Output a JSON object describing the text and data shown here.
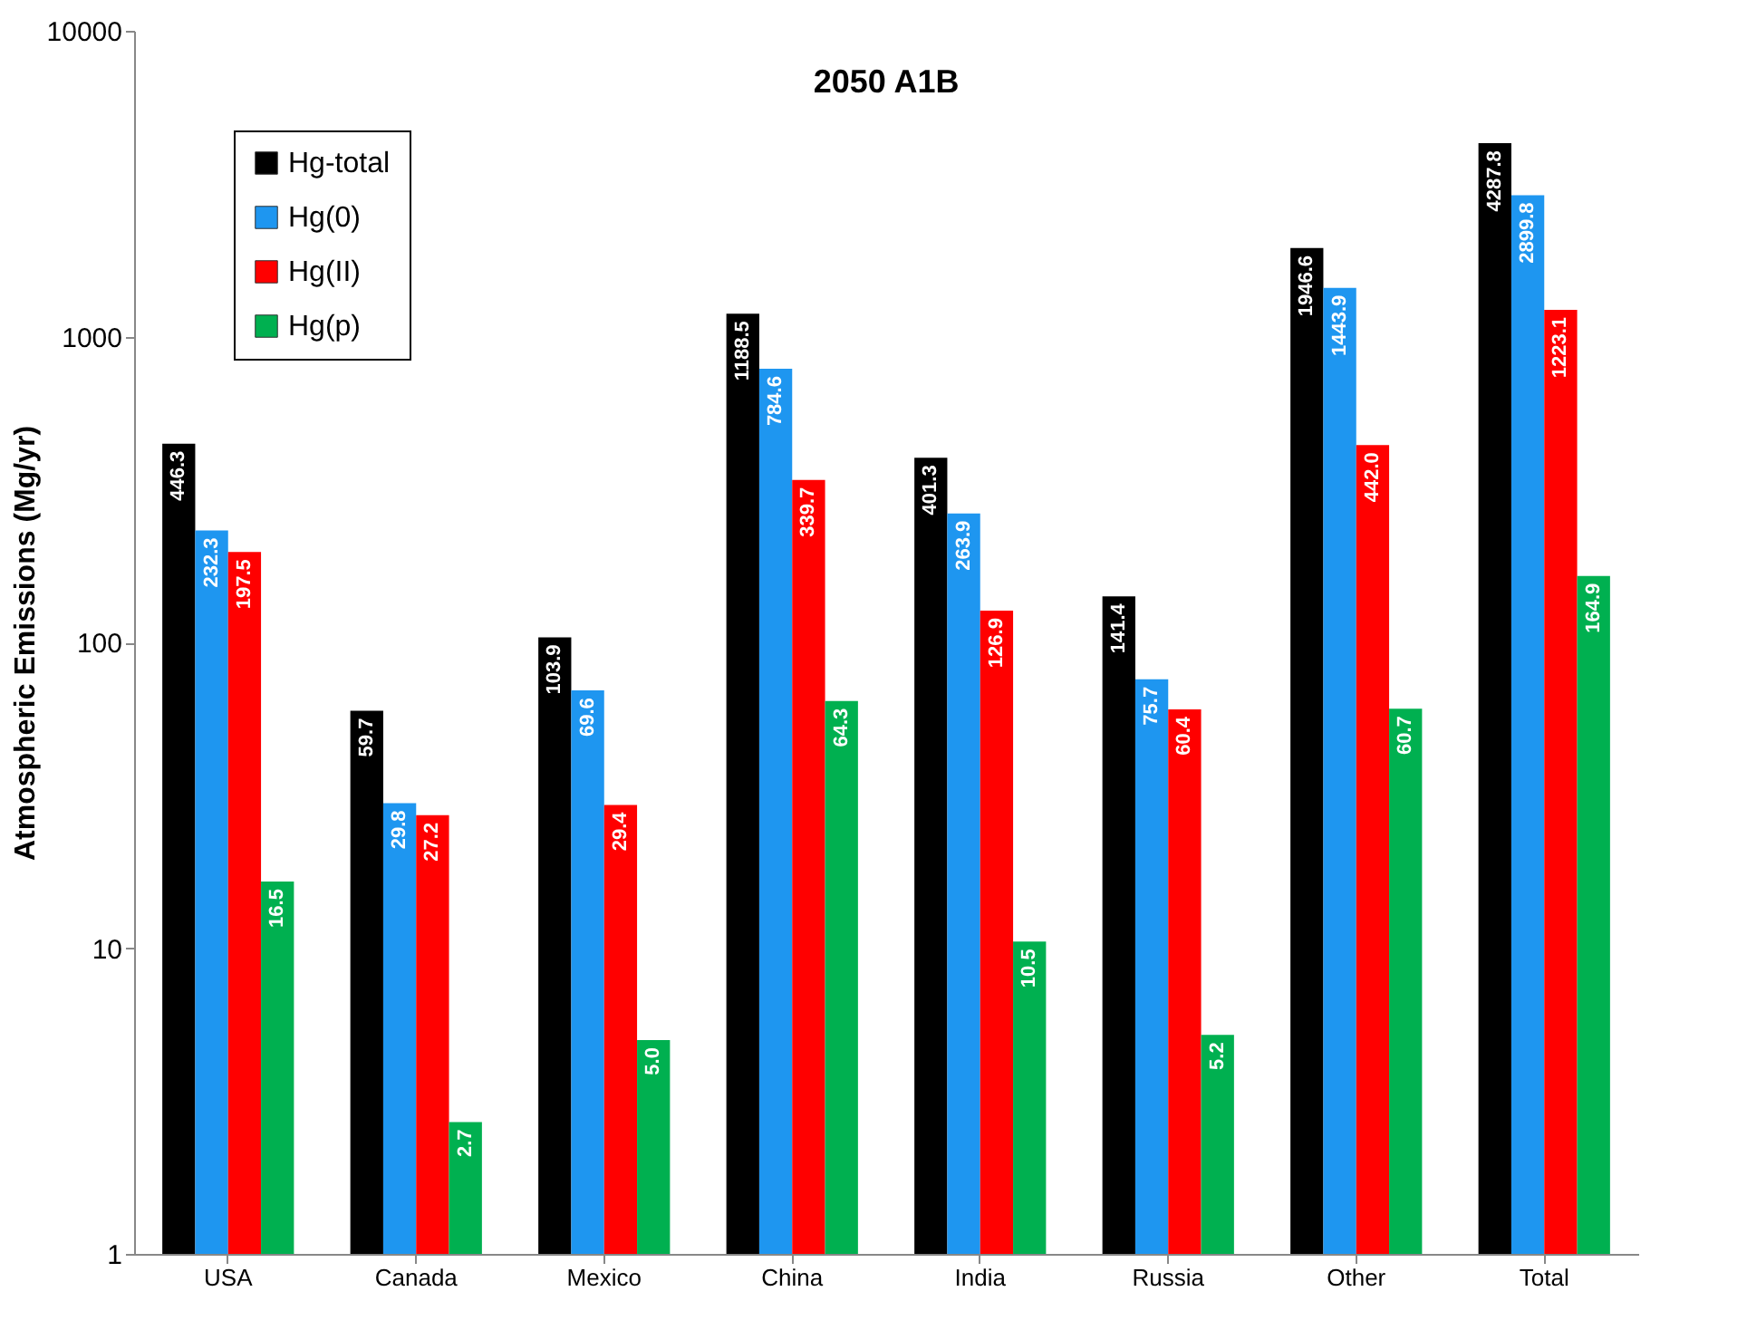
{
  "chart_data": {
    "type": "bar",
    "title": "2050 A1B",
    "ylabel": "Atmospheric Emissions (Mg/yr)",
    "categories": [
      "USA",
      "Canada",
      "Mexico",
      "China",
      "India",
      "Russia",
      "Other",
      "Total"
    ],
    "series": [
      {
        "name": "Hg-total",
        "color": "#000000",
        "values": [
          446.3,
          59.7,
          103.9,
          1188.5,
          401.3,
          141.4,
          1946.6,
          4287.8
        ],
        "value_labels": [
          "446.3",
          "59.7",
          "103.9",
          "1188.5",
          "401.3",
          "141.4",
          "1946.6",
          "4287.8"
        ]
      },
      {
        "name": "Hg(0)",
        "color": "#1e96f0",
        "values": [
          232.3,
          29.8,
          69.6,
          784.6,
          263.9,
          75.7,
          1443.9,
          2899.8
        ],
        "value_labels": [
          "232.3",
          "29.8",
          "69.6",
          "784.6",
          "263.9",
          "75.7",
          "1443.9",
          "2899.8"
        ]
      },
      {
        "name": "Hg(II)",
        "color": "#ff0000",
        "values": [
          197.5,
          27.2,
          29.4,
          339.7,
          126.9,
          60.4,
          442.0,
          1223.1
        ],
        "value_labels": [
          "197.5",
          "27.2",
          "29.4",
          "339.7",
          "126.9",
          "60.4",
          "442.0",
          "1223.1"
        ]
      },
      {
        "name": "Hg(p)",
        "color": "#00b050",
        "values": [
          16.5,
          2.7,
          5.0,
          64.3,
          10.5,
          5.2,
          60.7,
          164.9
        ],
        "value_labels": [
          "16.5",
          "2.7",
          "5.0",
          "64.3",
          "10.5",
          "5.2",
          "60.7",
          "164.9"
        ]
      }
    ],
    "ylim": [
      1,
      10000
    ],
    "yticks": [
      1,
      10,
      100,
      1000,
      10000
    ],
    "log": "y",
    "legend": "top left",
    "grid": false
  }
}
